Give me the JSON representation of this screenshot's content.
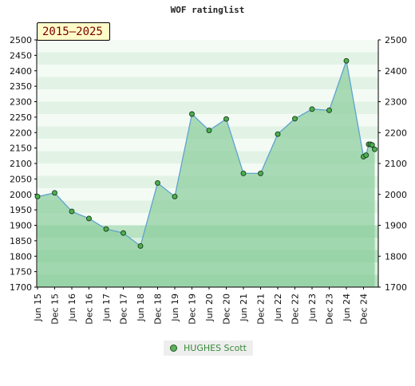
{
  "title": "WOF ratinglist",
  "period": "2015–2025",
  "chart_data": {
    "type": "area",
    "title": "WOF ratinglist",
    "categories": [
      "Jun 15",
      "Dec 15",
      "Jun 16",
      "Dec 16",
      "Jun 17",
      "Dec 17",
      "Jun 18",
      "Dec 18",
      "Jun 19",
      "Dec 19",
      "Jun 20",
      "Dec 20",
      "Jun 21",
      "Dec 21",
      "Jun 22",
      "Dec 22",
      "Jun 23",
      "Dec 23",
      "Jun 24",
      "Dec 24"
    ],
    "ylim": [
      1700,
      2500
    ],
    "yticks_left": [
      1700,
      1750,
      1800,
      1850,
      1900,
      1950,
      2000,
      2050,
      2100,
      2150,
      2200,
      2250,
      2300,
      2350,
      2400,
      2450,
      2500
    ],
    "yticks_right": [
      1700,
      1800,
      1900,
      2000,
      2100,
      2200,
      2300,
      2400,
      2500
    ],
    "series": [
      {
        "name": "HUGHES Scott",
        "x": [
          0,
          1,
          2,
          3,
          4,
          5,
          6,
          7,
          8,
          9,
          10,
          11,
          12,
          13,
          14,
          15,
          16,
          17,
          18,
          19,
          19.15,
          19.3,
          19.4,
          19.5,
          19.65
        ],
        "values": [
          1993,
          2005,
          1945,
          1922,
          1888,
          1875,
          1833,
          2037,
          1993,
          2260,
          2207,
          2244,
          2068,
          2068,
          2195,
          2245,
          2276,
          2272,
          2432,
          2122,
          2127,
          2162,
          2162,
          2160,
          2146
        ]
      }
    ],
    "colors": {
      "line": "#5fa3cf",
      "area": "#8fcf9f",
      "marker": "#4caf50"
    },
    "grid": true,
    "legend": "bottom-center"
  }
}
